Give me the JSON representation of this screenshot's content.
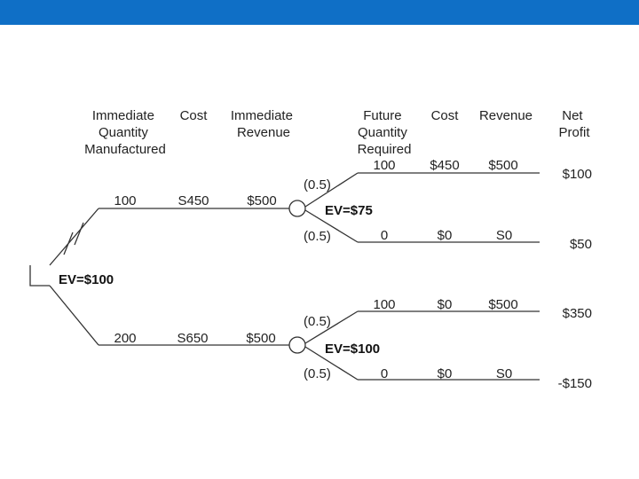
{
  "colors": {
    "top_bar": "#0f6fc6",
    "line": "#333333",
    "text": "#222222"
  },
  "headers": {
    "immediate_qty": [
      "Immediate",
      "Quantity",
      "Manufactured"
    ],
    "cost": [
      "Cost"
    ],
    "immediate_revenue": [
      "Immediate",
      "Revenue"
    ],
    "future_qty": [
      "Future",
      "Quantity",
      "Required"
    ],
    "cost2": [
      "Cost"
    ],
    "revenue": [
      "Revenue"
    ],
    "net_profit": [
      "Net",
      "Profit"
    ]
  },
  "root_ev": "EV=$100",
  "branches": [
    {
      "quantity": "100",
      "cost": "S450",
      "revenue": "$500",
      "ev": "EV=$75",
      "outcomes": [
        {
          "prob": "(0.5)",
          "future_qty": "100",
          "cost": "$450",
          "revenue": "$500",
          "net_profit": "$100"
        },
        {
          "prob": "(0.5)",
          "future_qty": "0",
          "cost": "$0",
          "revenue": "S0",
          "net_profit": "$50"
        }
      ]
    },
    {
      "quantity": "200",
      "cost": "S650",
      "revenue": "$500",
      "ev": "EV=$100",
      "outcomes": [
        {
          "prob": "(0.5)",
          "future_qty": "100",
          "cost": "$0",
          "revenue": "$500",
          "net_profit": "$350"
        },
        {
          "prob": "(0.5)",
          "future_qty": "0",
          "cost": "$0",
          "revenue": "S0",
          "net_profit": "-$150"
        }
      ]
    }
  ]
}
